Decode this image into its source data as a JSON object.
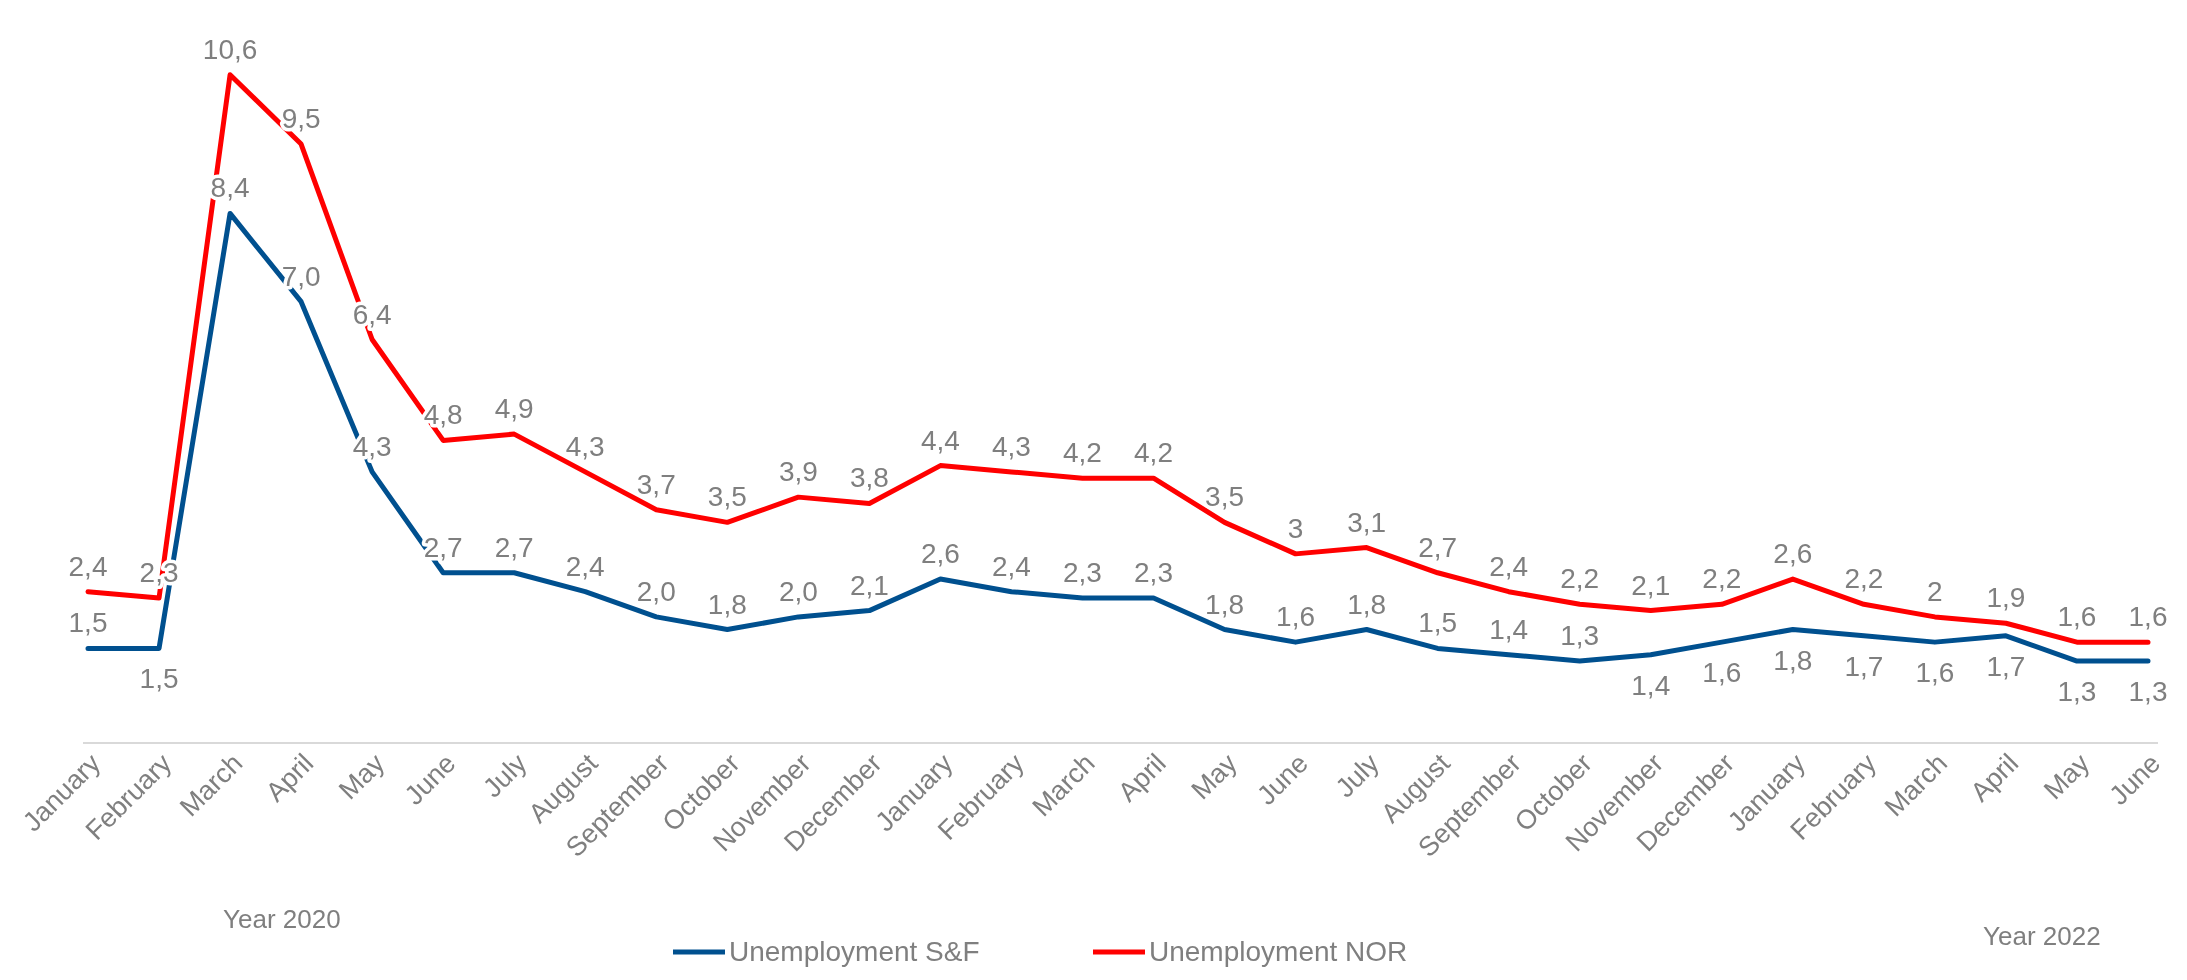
{
  "chart_data": {
    "type": "line",
    "categories": [
      "January",
      "February",
      "March",
      "April",
      "May",
      "June",
      "July",
      "August",
      "September",
      "October",
      "November",
      "December",
      "January",
      "February",
      "March",
      "April",
      "May",
      "June",
      "July",
      "August",
      "September",
      "October",
      "November",
      "December",
      "January",
      "February",
      "March",
      "April",
      "May",
      "June"
    ],
    "tick_labels": "x",
    "legend": "bottom",
    "marker": "none",
    "line_style": "solid",
    "series": [
      {
        "name": "Unemployment S&F",
        "color": "#00508f",
        "values": [
          1.5,
          1.5,
          8.4,
          7.0,
          4.3,
          2.7,
          2.7,
          2.4,
          2.0,
          1.8,
          2.0,
          2.1,
          2.6,
          2.4,
          2.3,
          2.3,
          1.8,
          1.6,
          1.8,
          1.5,
          1.4,
          1.3,
          1.4,
          1.6,
          1.8,
          1.7,
          1.6,
          1.7,
          1.3,
          1.3
        ],
        "value_labels": [
          "1,5",
          "1,5",
          "8,4",
          "7,0",
          "4,3",
          "2,7",
          "2,7",
          "2,4",
          "2,0",
          "1,8",
          "2,0",
          "2,1",
          "2,6",
          "2,4",
          "2,3",
          "2,3",
          "1,8",
          "1,6",
          "1,8",
          "1,5",
          "1,4",
          "1,3",
          "1,4",
          "1,6",
          "1,8",
          "1,7",
          "1,6",
          "1,7",
          "1,3",
          "1,3"
        ]
      },
      {
        "name": "Unemployment NOR",
        "color": "#ff0000",
        "values": [
          2.4,
          2.3,
          10.6,
          9.5,
          6.4,
          4.8,
          4.9,
          4.3,
          3.7,
          3.5,
          3.9,
          3.8,
          4.4,
          4.3,
          4.2,
          4.2,
          3.5,
          3,
          3.1,
          2.7,
          2.4,
          2.2,
          2.1,
          2.2,
          2.6,
          2.2,
          2,
          1.9,
          1.6,
          1.6
        ],
        "value_labels": [
          "2,4",
          "2,3",
          "10,6",
          "9,5",
          "6,4",
          "4,8",
          "4,9",
          "4,3",
          "3,7",
          "3,5",
          "3,9",
          "3,8",
          "4,4",
          "4,3",
          "4,2",
          "4,2",
          "3,5",
          "3",
          "3,1",
          "2,7",
          "2,4",
          "2,2",
          "2,1",
          "2,2",
          "2,6",
          "2,2",
          "2",
          "1,9",
          "1,6",
          "1,6"
        ]
      }
    ],
    "annotations": [
      "Year 2020",
      "Year 2022"
    ]
  }
}
